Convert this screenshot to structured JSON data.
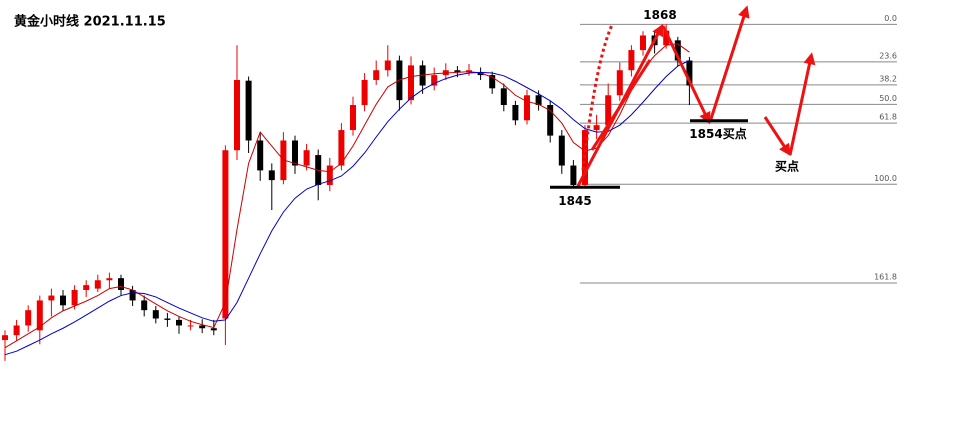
{
  "chart_data": {
    "type": "candlestick",
    "title": "黄金小时线 2021.11.15",
    "ylim": [
      1810.1,
      1871.5
    ],
    "up_color": "#ee0000",
    "down_color": "#000000",
    "open": [
      1822.6,
      1823.3,
      1824.7,
      1824.0,
      1828.3,
      1829.0,
      1827.6,
      1829.8,
      1830.0,
      1831.2,
      1831.5,
      1829.8,
      1828.3,
      1826.9,
      1825.7,
      1825.5,
      1824.7,
      1824.7,
      1824.3,
      1825.7,
      1849.9,
      1859.9,
      1851.3,
      1847.0,
      1845.6,
      1851.3,
      1847.7,
      1849.2,
      1844.9,
      1847.7,
      1852.8,
      1856.4,
      1860.0,
      1861.4,
      1862.8,
      1857.1,
      1862.1,
      1859.2,
      1860.7,
      1861.4,
      1861.1,
      1861.1,
      1860.7,
      1858.8,
      1856.4,
      1854.2,
      1857.8,
      1856.4,
      1852.0,
      1847.7,
      1844.9,
      1852.8,
      1853.5,
      1857.8,
      1861.4,
      1864.3,
      1866.4,
      1865.0,
      1865.7,
      1862.8
    ],
    "high": [
      1824.0,
      1825.5,
      1827.6,
      1829.0,
      1830.0,
      1829.8,
      1830.5,
      1831.2,
      1832.0,
      1832.3,
      1832.0,
      1830.4,
      1829.0,
      1827.5,
      1826.5,
      1826.0,
      1825.5,
      1825.6,
      1825.5,
      1850.6,
      1865.0,
      1860.5,
      1852.5,
      1848.0,
      1852.5,
      1852.0,
      1850.8,
      1850.0,
      1848.8,
      1853.8,
      1857.6,
      1861.0,
      1862.8,
      1865.0,
      1863.5,
      1863.4,
      1862.8,
      1861.8,
      1862.4,
      1862.0,
      1862.3,
      1861.8,
      1861.2,
      1859.5,
      1857.0,
      1858.6,
      1858.5,
      1857.0,
      1852.8,
      1848.5,
      1853.5,
      1855.0,
      1859.5,
      1862.5,
      1865.0,
      1867.0,
      1867.2,
      1868.0,
      1866.2,
      1863.3
    ],
    "low": [
      1819.6,
      1822.5,
      1823.8,
      1822.0,
      1826.0,
      1826.8,
      1827.0,
      1828.8,
      1829.5,
      1830.0,
      1829.0,
      1827.5,
      1826.0,
      1825.0,
      1824.5,
      1823.5,
      1824.0,
      1823.6,
      1823.3,
      1821.9,
      1848.5,
      1849.5,
      1845.5,
      1841.3,
      1845.0,
      1846.5,
      1847.0,
      1842.7,
      1844.0,
      1847.0,
      1852.0,
      1855.5,
      1859.3,
      1860.5,
      1855.6,
      1856.5,
      1858.0,
      1858.5,
      1860.0,
      1860.4,
      1860.6,
      1860.0,
      1858.0,
      1855.5,
      1853.5,
      1853.6,
      1855.6,
      1851.0,
      1846.5,
      1844.4,
      1844.5,
      1851.5,
      1853.0,
      1857.0,
      1860.5,
      1863.5,
      1863.8,
      1864.5,
      1862.0,
      1856.4
    ],
    "close": [
      1823.3,
      1824.7,
      1826.9,
      1828.3,
      1829.0,
      1827.6,
      1829.8,
      1830.5,
      1831.2,
      1831.5,
      1829.8,
      1828.3,
      1826.9,
      1825.7,
      1825.5,
      1824.7,
      1824.7,
      1824.3,
      1824.0,
      1849.9,
      1860.0,
      1851.3,
      1847.0,
      1845.6,
      1851.3,
      1847.7,
      1849.9,
      1844.9,
      1847.7,
      1852.8,
      1856.4,
      1860.0,
      1861.4,
      1862.8,
      1857.1,
      1862.1,
      1859.2,
      1860.7,
      1861.4,
      1861.1,
      1861.4,
      1860.7,
      1858.8,
      1856.4,
      1854.2,
      1857.8,
      1856.4,
      1852.0,
      1847.7,
      1844.9,
      1852.8,
      1853.5,
      1857.8,
      1861.4,
      1864.3,
      1866.4,
      1865.0,
      1867.1,
      1862.8,
      1859.2
    ],
    "series": [
      {
        "color": "#cc0000",
        "values": [
          1821.5,
          1822.5,
          1823.5,
          1824.5,
          1825.8,
          1826.8,
          1827.5,
          1828.2,
          1829.0,
          1830.0,
          1830.3,
          1829.8,
          1828.8,
          1827.8,
          1826.8,
          1826.0,
          1825.3,
          1824.8,
          1824.4,
          1828.0,
          1838.5,
          1848.0,
          1852.5,
          1850.5,
          1848.5,
          1848.0,
          1847.5,
          1847.0,
          1846.8,
          1848.0,
          1850.5,
          1853.5,
          1856.5,
          1859.0,
          1860.0,
          1860.5,
          1860.7,
          1860.9,
          1861.0,
          1861.1,
          1861.2,
          1861.0,
          1860.4,
          1859.3,
          1857.8,
          1856.9,
          1856.5,
          1855.6,
          1853.8,
          1851.0,
          1849.8,
          1850.2,
          1852.0,
          1855.0,
          1858.5,
          1861.5,
          1863.5,
          1865.0,
          1865.2,
          1864.0
        ]
      },
      {
        "color": "#0000cc",
        "values": [
          1820.5,
          1821.0,
          1821.8,
          1822.6,
          1823.5,
          1824.3,
          1825.2,
          1826.2,
          1827.2,
          1828.2,
          1829.0,
          1829.4,
          1829.3,
          1828.8,
          1828.0,
          1827.2,
          1826.5,
          1825.8,
          1825.3,
          1825.5,
          1828.0,
          1831.5,
          1835.0,
          1838.3,
          1841.0,
          1843.0,
          1844.3,
          1845.0,
          1845.5,
          1846.2,
          1847.6,
          1849.5,
          1851.8,
          1854.0,
          1855.8,
          1857.4,
          1858.6,
          1859.5,
          1860.2,
          1860.7,
          1861.0,
          1861.1,
          1861.0,
          1860.6,
          1859.8,
          1858.9,
          1858.0,
          1857.0,
          1855.8,
          1854.3,
          1853.0,
          1852.5,
          1852.6,
          1853.5,
          1855.0,
          1856.8,
          1858.7,
          1860.5,
          1862.0,
          1862.8
        ]
      }
    ],
    "fib_levels": [
      {
        "label": "0.0",
        "price": 1868
      },
      {
        "label": "23.6",
        "price": 1862.6
      },
      {
        "label": "38.2",
        "price": 1859.3
      },
      {
        "label": "50.0",
        "price": 1856.5
      },
      {
        "label": "61.8",
        "price": 1853.8
      },
      {
        "label": "100.0",
        "price": 1845
      },
      {
        "label": "161.8",
        "price": 1830.8
      }
    ],
    "annotations": [
      {
        "text": "1868",
        "price": 1868
      },
      {
        "text": "1845",
        "price": 1845
      },
      {
        "text": "1854买点",
        "price": 1854
      },
      {
        "text": "买点"
      }
    ]
  }
}
